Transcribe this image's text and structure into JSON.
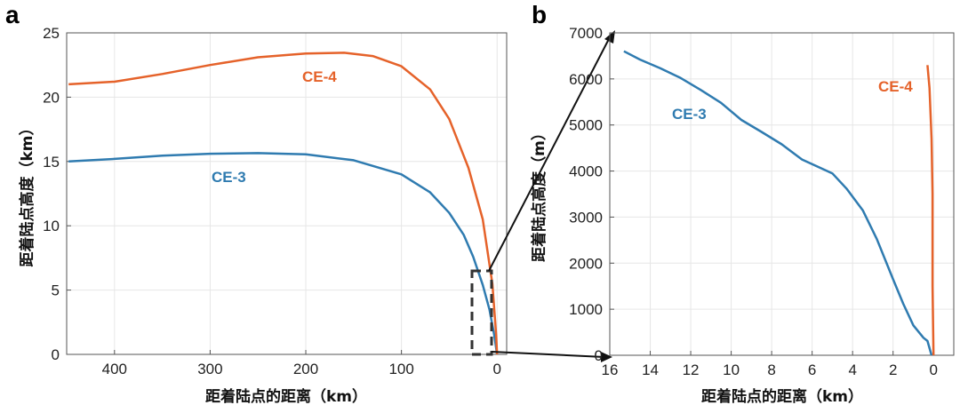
{
  "colors": {
    "ce3": "#2f7bb0",
    "ce4": "#e5622a"
  },
  "chart_data": [
    {
      "panel": "a",
      "type": "line",
      "xlabel": "距着陆点的距离（km）",
      "ylabel": "距着陆点高度（km）",
      "xlim": [
        450,
        -10
      ],
      "ylim": [
        0,
        25
      ],
      "xticks": [
        400,
        300,
        200,
        100,
        0
      ],
      "yticks": [
        0,
        5,
        10,
        15,
        20,
        25
      ],
      "grid": true,
      "series": [
        {
          "name": "CE-3",
          "x": [
            448,
            400,
            350,
            300,
            250,
            200,
            150,
            100,
            70,
            50,
            35,
            25,
            15,
            8,
            3,
            0
          ],
          "y": [
            15.0,
            15.2,
            15.45,
            15.6,
            15.65,
            15.55,
            15.1,
            14.0,
            12.6,
            11.0,
            9.3,
            7.6,
            5.4,
            3.5,
            1.5,
            0
          ]
        },
        {
          "name": "CE-4",
          "x": [
            448,
            400,
            350,
            300,
            250,
            200,
            160,
            130,
            100,
            70,
            50,
            30,
            15,
            5,
            1,
            0
          ],
          "y": [
            21.0,
            21.2,
            21.8,
            22.5,
            23.1,
            23.4,
            23.45,
            23.2,
            22.4,
            20.6,
            18.3,
            14.5,
            10.5,
            5.5,
            1.5,
            0
          ]
        }
      ]
    },
    {
      "panel": "b",
      "type": "line",
      "xlabel": "距着陆点的距离（km）",
      "ylabel": "距着陆点高度（m）",
      "xlim": [
        16,
        -1
      ],
      "ylim": [
        0,
        7000
      ],
      "xticks": [
        16,
        14,
        12,
        10,
        8,
        6,
        4,
        2,
        0
      ],
      "yticks": [
        0,
        1000,
        2000,
        3000,
        4000,
        5000,
        6000,
        7000
      ],
      "grid": true,
      "series": [
        {
          "name": "CE-3",
          "x": [
            15.3,
            14.5,
            13.5,
            12.5,
            11.5,
            10.5,
            9.5,
            8.5,
            7.5,
            6.5,
            5.8,
            5.0,
            4.3,
            3.5,
            2.8,
            2.0,
            1.5,
            1.0,
            0.5,
            0.3,
            0.1
          ],
          "y": [
            6600,
            6420,
            6230,
            6020,
            5760,
            5480,
            5110,
            4850,
            4580,
            4250,
            4110,
            3950,
            3620,
            3150,
            2520,
            1650,
            1120,
            650,
            380,
            310,
            0
          ]
        },
        {
          "name": "CE-4",
          "x": [
            0.3,
            0.2,
            0.1,
            0.05,
            0.05,
            0.0
          ],
          "y": [
            6300,
            5800,
            4700,
            3500,
            1500,
            0
          ]
        }
      ]
    }
  ],
  "panels": {
    "a": {
      "letter": "a"
    },
    "b": {
      "letter": "b"
    }
  },
  "labels": {
    "ce3": "CE-3",
    "ce4": "CE-4"
  }
}
